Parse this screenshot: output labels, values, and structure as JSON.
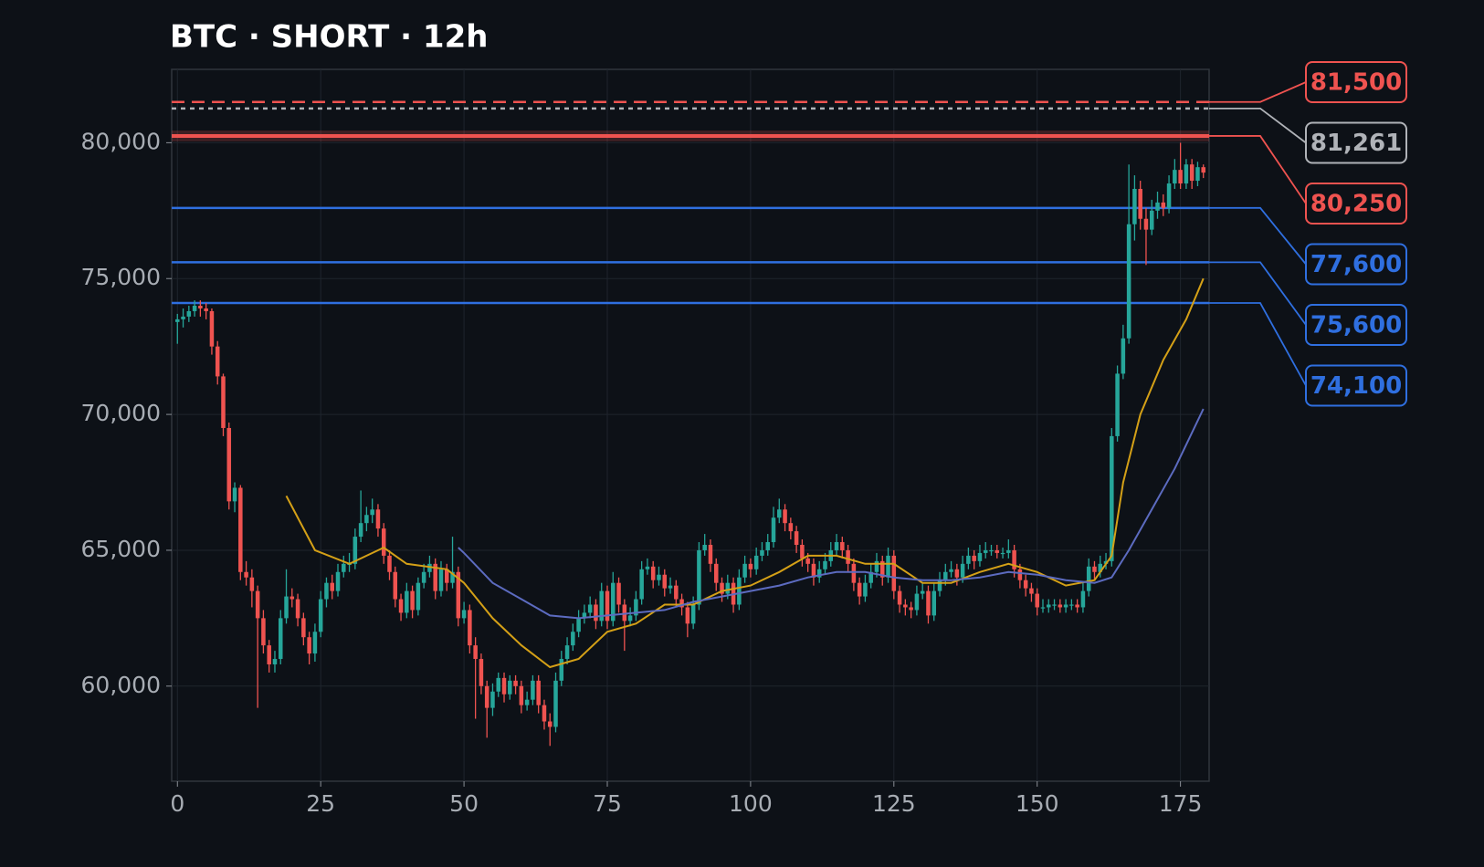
{
  "chart_data": {
    "type": "candlestick",
    "title": "BTC · SHORT · 12h",
    "xlim": [
      -1,
      180
    ],
    "xticks": [
      0,
      25,
      50,
      75,
      100,
      125,
      150,
      175
    ],
    "ylim": [
      56500,
      82700
    ],
    "yticks": [
      {
        "value": 60000,
        "label": "60,000"
      },
      {
        "value": 65000,
        "label": "65,000"
      },
      {
        "value": 70000,
        "label": "70,000"
      },
      {
        "value": 75000,
        "label": "75,000"
      },
      {
        "value": 80000,
        "label": "80,000"
      }
    ],
    "grid": true,
    "up_color": "#26a69a",
    "down_color": "#ef5350",
    "candles": [
      [
        73400,
        73700,
        72600,
        73500
      ],
      [
        73500,
        73900,
        73200,
        73600
      ],
      [
        73600,
        74000,
        73400,
        73800
      ],
      [
        73800,
        74200,
        73600,
        74000
      ],
      [
        74000,
        74200,
        73600,
        73900
      ],
      [
        73900,
        74100,
        73500,
        73800
      ],
      [
        73800,
        73900,
        72200,
        72500
      ],
      [
        72500,
        72700,
        71100,
        71400
      ],
      [
        71400,
        71500,
        69200,
        69500
      ],
      [
        69500,
        69700,
        66500,
        66800
      ],
      [
        66800,
        67500,
        66400,
        67300
      ],
      [
        67300,
        67400,
        63900,
        64200
      ],
      [
        64200,
        64600,
        63700,
        64000
      ],
      [
        64000,
        64300,
        62900,
        63500
      ],
      [
        63500,
        63700,
        59200,
        62500
      ],
      [
        62500,
        62800,
        61200,
        61500
      ],
      [
        61500,
        61700,
        60500,
        60800
      ],
      [
        60800,
        61300,
        60500,
        61000
      ],
      [
        61000,
        62800,
        60800,
        62500
      ],
      [
        62500,
        64300,
        62300,
        63300
      ],
      [
        63300,
        63600,
        62900,
        63200
      ],
      [
        63200,
        63400,
        62200,
        62500
      ],
      [
        62500,
        62700,
        61500,
        61800
      ],
      [
        61800,
        62000,
        60800,
        61200
      ],
      [
        61200,
        62300,
        60900,
        62000
      ],
      [
        62000,
        63500,
        61800,
        63200
      ],
      [
        63200,
        64000,
        62900,
        63800
      ],
      [
        63800,
        64100,
        63200,
        63500
      ],
      [
        63500,
        64500,
        63300,
        64200
      ],
      [
        64200,
        64800,
        64000,
        64500
      ],
      [
        64500,
        64900,
        64200,
        64500
      ],
      [
        64500,
        65800,
        64300,
        65500
      ],
      [
        65500,
        67200,
        65300,
        66000
      ],
      [
        66000,
        66600,
        65700,
        66300
      ],
      [
        66300,
        66900,
        66000,
        66500
      ],
      [
        66500,
        66700,
        65500,
        65800
      ],
      [
        65800,
        66000,
        64500,
        64800
      ],
      [
        64800,
        65000,
        63900,
        64200
      ],
      [
        64200,
        64400,
        62900,
        63200
      ],
      [
        63200,
        63400,
        62400,
        62700
      ],
      [
        62700,
        63800,
        62500,
        63500
      ],
      [
        63500,
        63700,
        62500,
        62800
      ],
      [
        62800,
        64000,
        62600,
        63800
      ],
      [
        63800,
        64500,
        63600,
        64200
      ],
      [
        64200,
        64800,
        64000,
        64500
      ],
      [
        64500,
        64700,
        63200,
        63500
      ],
      [
        63500,
        64600,
        63300,
        64300
      ],
      [
        64300,
        64500,
        63500,
        63800
      ],
      [
        63800,
        65500,
        63600,
        64200
      ],
      [
        64200,
        64400,
        62200,
        62500
      ],
      [
        62500,
        63100,
        62300,
        62800
      ],
      [
        62800,
        63000,
        61200,
        61500
      ],
      [
        61500,
        61800,
        58800,
        61000
      ],
      [
        61000,
        61200,
        59700,
        60000
      ],
      [
        60000,
        60200,
        58100,
        59200
      ],
      [
        59200,
        60100,
        58900,
        59800
      ],
      [
        59800,
        60500,
        59600,
        60300
      ],
      [
        60300,
        60500,
        59400,
        59700
      ],
      [
        59700,
        60400,
        59500,
        60200
      ],
      [
        60200,
        60400,
        59700,
        60000
      ],
      [
        60000,
        60200,
        59000,
        59300
      ],
      [
        59300,
        59800,
        59100,
        59500
      ],
      [
        59500,
        60400,
        59300,
        60200
      ],
      [
        60200,
        60400,
        59000,
        59300
      ],
      [
        59300,
        59500,
        58400,
        58700
      ],
      [
        58700,
        59000,
        57800,
        58500
      ],
      [
        58500,
        60500,
        58300,
        60200
      ],
      [
        60200,
        61300,
        60000,
        61000
      ],
      [
        61000,
        61800,
        60800,
        61500
      ],
      [
        61500,
        62300,
        61300,
        62000
      ],
      [
        62000,
        62800,
        61800,
        62500
      ],
      [
        62500,
        63000,
        62300,
        62700
      ],
      [
        62700,
        63300,
        62500,
        63000
      ],
      [
        63000,
        63200,
        62100,
        62400
      ],
      [
        62400,
        63800,
        62200,
        63500
      ],
      [
        63500,
        63700,
        62100,
        62400
      ],
      [
        62400,
        64200,
        62200,
        63800
      ],
      [
        63800,
        64000,
        62700,
        63000
      ],
      [
        63000,
        63200,
        61300,
        62400
      ],
      [
        62400,
        62900,
        62200,
        62600
      ],
      [
        62600,
        63500,
        62400,
        63200
      ],
      [
        63200,
        64600,
        63000,
        64300
      ],
      [
        64300,
        64700,
        64100,
        64400
      ],
      [
        64400,
        64600,
        63600,
        63900
      ],
      [
        63900,
        64400,
        63700,
        64100
      ],
      [
        64100,
        64300,
        63300,
        63600
      ],
      [
        63600,
        64000,
        63400,
        63700
      ],
      [
        63700,
        63900,
        62900,
        63200
      ],
      [
        63200,
        63400,
        62600,
        62900
      ],
      [
        62900,
        63100,
        61800,
        62300
      ],
      [
        62300,
        63300,
        62100,
        63000
      ],
      [
        63000,
        65300,
        62800,
        65000
      ],
      [
        65000,
        65600,
        64800,
        65200
      ],
      [
        65200,
        65400,
        64200,
        64500
      ],
      [
        64500,
        64700,
        63500,
        63800
      ],
      [
        63800,
        64000,
        63100,
        63400
      ],
      [
        63400,
        64100,
        63200,
        63800
      ],
      [
        63800,
        64000,
        62700,
        63000
      ],
      [
        63000,
        64300,
        62800,
        64000
      ],
      [
        64000,
        64800,
        63800,
        64500
      ],
      [
        64500,
        64700,
        64000,
        64300
      ],
      [
        64300,
        65100,
        64100,
        64800
      ],
      [
        64800,
        65300,
        64600,
        65000
      ],
      [
        65000,
        65600,
        64800,
        65300
      ],
      [
        65300,
        66600,
        65100,
        66200
      ],
      [
        66200,
        66900,
        66000,
        66500
      ],
      [
        66500,
        66700,
        65700,
        66000
      ],
      [
        66000,
        66200,
        65400,
        65700
      ],
      [
        65700,
        65900,
        64900,
        65200
      ],
      [
        65200,
        65400,
        64400,
        64700
      ],
      [
        64700,
        64900,
        64200,
        64500
      ],
      [
        64500,
        64700,
        63700,
        64000
      ],
      [
        64000,
        64600,
        63800,
        64300
      ],
      [
        64300,
        64900,
        64100,
        64600
      ],
      [
        64600,
        65300,
        64400,
        65000
      ],
      [
        65000,
        65600,
        64800,
        65300
      ],
      [
        65300,
        65500,
        64700,
        65000
      ],
      [
        65000,
        65200,
        64200,
        64500
      ],
      [
        64500,
        64700,
        63500,
        63800
      ],
      [
        63800,
        64000,
        63000,
        63300
      ],
      [
        63300,
        64100,
        63100,
        63800
      ],
      [
        63800,
        64500,
        63600,
        64200
      ],
      [
        64200,
        64900,
        64000,
        64600
      ],
      [
        64600,
        64800,
        63700,
        64000
      ],
      [
        64000,
        65100,
        63800,
        64800
      ],
      [
        64800,
        65000,
        63200,
        63500
      ],
      [
        63500,
        63700,
        62700,
        63000
      ],
      [
        63000,
        63200,
        62600,
        62900
      ],
      [
        62900,
        63100,
        62500,
        62800
      ],
      [
        62800,
        63700,
        62600,
        63400
      ],
      [
        63400,
        63800,
        63200,
        63500
      ],
      [
        63500,
        63700,
        62300,
        62600
      ],
      [
        62600,
        63800,
        62400,
        63500
      ],
      [
        63500,
        64200,
        63300,
        63900
      ],
      [
        63900,
        64500,
        63700,
        64200
      ],
      [
        64200,
        64600,
        64000,
        64300
      ],
      [
        64300,
        64500,
        63700,
        64000
      ],
      [
        64000,
        64800,
        63800,
        64500
      ],
      [
        64500,
        65100,
        64300,
        64800
      ],
      [
        64800,
        65000,
        64300,
        64600
      ],
      [
        64600,
        65200,
        64400,
        64900
      ],
      [
        64900,
        65300,
        64700,
        65000
      ],
      [
        65000,
        65200,
        64800,
        65000
      ],
      [
        65000,
        65200,
        64700,
        64900
      ],
      [
        64900,
        65100,
        64700,
        64900
      ],
      [
        64900,
        65400,
        64700,
        65000
      ],
      [
        65000,
        65200,
        64000,
        64300
      ],
      [
        64300,
        64500,
        63600,
        63900
      ],
      [
        63900,
        64100,
        63300,
        63600
      ],
      [
        63600,
        63800,
        63100,
        63400
      ],
      [
        63400,
        63600,
        62600,
        62900
      ],
      [
        62900,
        63200,
        62700,
        62900
      ],
      [
        62900,
        63200,
        62700,
        63000
      ],
      [
        63000,
        63200,
        62800,
        63000
      ],
      [
        63000,
        63200,
        62700,
        62900
      ],
      [
        62900,
        63200,
        62700,
        63000
      ],
      [
        63000,
        63200,
        62800,
        63000
      ],
      [
        63000,
        63200,
        62700,
        62900
      ],
      [
        62900,
        63800,
        62700,
        63500
      ],
      [
        63500,
        64700,
        63300,
        64400
      ],
      [
        64400,
        64600,
        63900,
        64200
      ],
      [
        64200,
        64800,
        64000,
        64500
      ],
      [
        64500,
        64900,
        64300,
        64600
      ],
      [
        64600,
        69500,
        64400,
        69200
      ],
      [
        69200,
        71800,
        69000,
        71500
      ],
      [
        71500,
        73300,
        71300,
        72800
      ],
      [
        72800,
        79200,
        72600,
        77000
      ],
      [
        77000,
        78800,
        76400,
        78300
      ],
      [
        78300,
        78600,
        76800,
        77200
      ],
      [
        77200,
        77600,
        75500,
        76800
      ],
      [
        76800,
        77900,
        76600,
        77500
      ],
      [
        77500,
        78200,
        77200,
        77800
      ],
      [
        77800,
        78100,
        77300,
        77600
      ],
      [
        77600,
        78800,
        77400,
        78500
      ],
      [
        78500,
        79400,
        78300,
        79000
      ],
      [
        79000,
        80000,
        78300,
        78500
      ],
      [
        78500,
        79400,
        78300,
        79200
      ],
      [
        79200,
        79400,
        78300,
        78600
      ],
      [
        78600,
        79300,
        78400,
        79100
      ],
      [
        79100,
        79200,
        78700,
        78900
      ]
    ],
    "lines": [
      {
        "color": "#d4a017",
        "x": [
          19,
          24,
          30,
          36,
          40,
          47,
          50,
          55,
          60,
          65,
          70,
          75,
          80,
          85,
          90,
          95,
          100,
          105,
          110,
          115,
          120,
          125,
          130,
          135,
          140,
          145,
          150,
          155,
          160,
          163,
          165,
          168,
          172,
          176,
          179
        ],
        "values": [
          67000,
          65000,
          64500,
          65100,
          64500,
          64300,
          63800,
          62500,
          61500,
          60700,
          61000,
          62000,
          62300,
          63000,
          63000,
          63500,
          63700,
          64200,
          64800,
          64800,
          64500,
          64500,
          63800,
          63800,
          64200,
          64500,
          64200,
          63700,
          63900,
          64800,
          67500,
          70000,
          72000,
          73500,
          75000
        ]
      },
      {
        "color": "#5c6bc0",
        "x": [
          49,
          50,
          55,
          60,
          65,
          70,
          75,
          80,
          85,
          90,
          95,
          100,
          105,
          110,
          115,
          120,
          125,
          130,
          135,
          140,
          145,
          150,
          155,
          160,
          163,
          166,
          170,
          174,
          179
        ],
        "values": [
          65100,
          64900,
          63800,
          63200,
          62600,
          62500,
          62600,
          62700,
          62800,
          63100,
          63300,
          63500,
          63700,
          64000,
          64200,
          64200,
          64000,
          63900,
          63900,
          64000,
          64200,
          64100,
          63900,
          63800,
          64000,
          65000,
          66500,
          68000,
          70200
        ]
      }
    ],
    "levels": [
      {
        "value": 81500,
        "label": "81,500",
        "color": "#ef5350",
        "style": "dashed"
      },
      {
        "value": 81261,
        "label": "81,261",
        "color": "#b0b3b8",
        "style": "dotted"
      },
      {
        "value": 80250,
        "label": "80,250",
        "color": "#ef5350",
        "style": "solid",
        "zone": [
          80050,
          80450
        ]
      },
      {
        "value": 77600,
        "label": "77,600",
        "color": "#2f6fe0",
        "style": "solid"
      },
      {
        "value": 75600,
        "label": "75,600",
        "color": "#2f6fe0",
        "style": "solid"
      },
      {
        "value": 74100,
        "label": "74,100",
        "color": "#2f6fe0",
        "style": "solid"
      }
    ]
  }
}
